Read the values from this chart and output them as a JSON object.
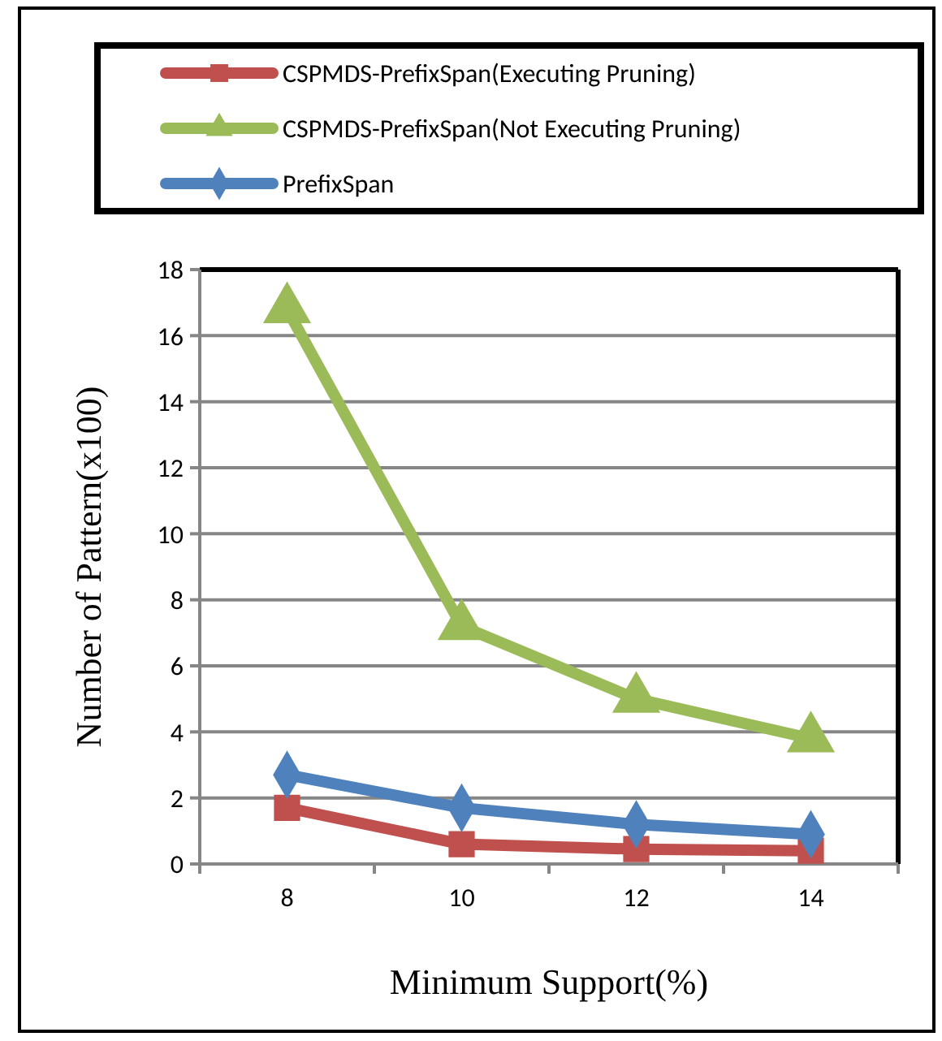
{
  "chart_data": {
    "type": "line",
    "xlabel": "Minimum Support(%)",
    "ylabel": "Number of Pattern(x100)",
    "categories": [
      "8",
      "10",
      "12",
      "14"
    ],
    "series": [
      {
        "name": "CSPMDS-PrefixSpan(Executing Pruning)",
        "color": "#c0504d",
        "marker": "square",
        "values": [
          1.7,
          0.6,
          0.45,
          0.4
        ]
      },
      {
        "name": "CSPMDS-PrefixSpan(Not Executing Pruning)",
        "color": "#9bbb59",
        "marker": "triangle",
        "values": [
          16.8,
          7.2,
          5.0,
          3.8
        ]
      },
      {
        "name": "PrefixSpan",
        "color": "#4f81bd",
        "marker": "diamond",
        "values": [
          2.7,
          1.7,
          1.2,
          0.9
        ]
      }
    ],
    "ylim": [
      0,
      18
    ],
    "yticks": [
      0,
      2,
      4,
      6,
      8,
      10,
      12,
      14,
      16,
      18
    ],
    "grid": "y",
    "legend": "top",
    "line_style": "solid"
  }
}
